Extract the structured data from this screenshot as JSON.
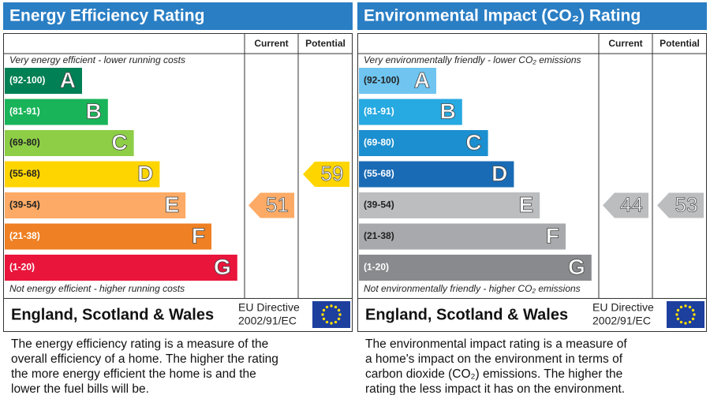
{
  "chart_data": [
    {
      "type": "epc_rating",
      "title": "Energy Efficiency Rating",
      "columns": [
        "Current",
        "Potential"
      ],
      "top_note": "Very energy efficient - lower running costs",
      "bottom_note": "Not energy efficient - higher running costs",
      "categories": [
        "(92-100)",
        "(81-91)",
        "(69-80)",
        "(55-68)",
        "(39-54)",
        "(21-38)",
        "(1-20)"
      ],
      "letters": [
        "A",
        "B",
        "C",
        "D",
        "E",
        "F",
        "G"
      ],
      "colors": [
        "#008054",
        "#19b459",
        "#8dce46",
        "#ffd500",
        "#fcaa65",
        "#ef8023",
        "#e9153b"
      ],
      "current": 51,
      "potential": 59,
      "region": "England, Scotland & Wales",
      "directive": [
        "EU Directive",
        "2002/91/EC"
      ],
      "description": [
        "The energy efficiency rating is a measure of the",
        "overall efficiency of a home. The higher the rating",
        "the more energy efficient the home is and the",
        "lower the fuel bills will be."
      ]
    },
    {
      "type": "epc_rating",
      "title": "Environmental Impact (CO₂) Rating",
      "columns": [
        "Current",
        "Potential"
      ],
      "top_note": "Very environmentally friendly - lower CO₂ emissions",
      "bottom_note": "Not environmentally friendly - higher CO₂ emissions",
      "categories": [
        "(92-100)",
        "(81-91)",
        "(69-80)",
        "(55-68)",
        "(39-54)",
        "(21-38)",
        "(1-20)"
      ],
      "letters": [
        "A",
        "B",
        "C",
        "D",
        "E",
        "F",
        "G"
      ],
      "colors": [
        "#6fc5f0",
        "#27a9e1",
        "#1b8fcf",
        "#1a6bb5",
        "#bbbdbf",
        "#a7a9ac",
        "#888a8d"
      ],
      "current": 44,
      "potential": 53,
      "region": "England, Scotland & Wales",
      "directive": [
        "EU Directive",
        "2002/91/EC"
      ],
      "description": [
        "The environmental impact rating is a measure of",
        "a home's impact on the environment in terms of",
        "carbon dioxide (CO₂) emissions. The higher the",
        "rating the less impact it has on the environment."
      ]
    }
  ]
}
